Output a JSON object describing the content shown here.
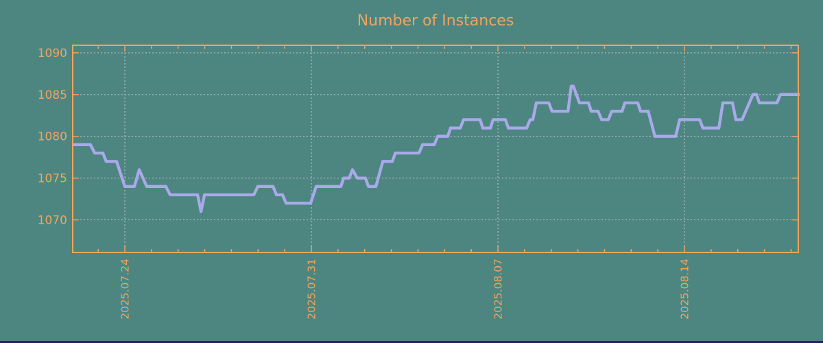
{
  "title": "Number of Instances",
  "colors": {
    "background": "#4d8681",
    "axis": "#f2a45c",
    "text": "#f2a45c",
    "line": "#a9a9ea",
    "grid": "#c9c9c9",
    "bottom_strip": "#26265e"
  },
  "chart_data": {
    "type": "line",
    "title": "Number of Instances",
    "xlabel": "",
    "ylabel": "",
    "grid": true,
    "legend": "none",
    "x_axis": {
      "unit": "days relative to 2025.07.24",
      "lim": [
        -1.956,
        25.271
      ],
      "major_ticks": [
        {
          "t": 0,
          "label": "2025.07.24"
        },
        {
          "t": 7,
          "label": "2025.07.31"
        },
        {
          "t": 14,
          "label": "2025.08.07"
        },
        {
          "t": 21,
          "label": "2025.08.14"
        }
      ],
      "minor_tick_interval": 1
    },
    "y_axis": {
      "lim": [
        1066.1,
        1090.9
      ],
      "ticks": [
        {
          "value": 1070,
          "label": "1070"
        },
        {
          "value": 1075,
          "label": "1075"
        },
        {
          "value": 1080,
          "label": "1080"
        },
        {
          "value": 1085,
          "label": "1085"
        },
        {
          "value": 1090,
          "label": "1090"
        }
      ]
    },
    "series": [
      {
        "name": "instances",
        "color": "#a9a9ea",
        "points": [
          [
            -1.96,
            1079
          ],
          [
            -1.29,
            1079
          ],
          [
            -1.13,
            1078
          ],
          [
            -0.82,
            1078
          ],
          [
            -0.7,
            1077
          ],
          [
            -0.31,
            1077
          ],
          [
            0.0,
            1074
          ],
          [
            0.36,
            1074
          ],
          [
            0.54,
            1076
          ],
          [
            0.82,
            1074
          ],
          [
            1.54,
            1074
          ],
          [
            1.7,
            1073
          ],
          [
            2.73,
            1073
          ],
          [
            2.86,
            1071
          ],
          [
            2.99,
            1073
          ],
          [
            4.84,
            1073
          ],
          [
            4.99,
            1074
          ],
          [
            5.56,
            1074
          ],
          [
            5.69,
            1073
          ],
          [
            5.92,
            1073
          ],
          [
            6.05,
            1072
          ],
          [
            6.97,
            1072
          ],
          [
            7.18,
            1074
          ],
          [
            8.11,
            1074
          ],
          [
            8.21,
            1075
          ],
          [
            8.42,
            1075
          ],
          [
            8.54,
            1076
          ],
          [
            8.72,
            1075
          ],
          [
            9.03,
            1075
          ],
          [
            9.14,
            1074
          ],
          [
            9.42,
            1074
          ],
          [
            9.68,
            1077
          ],
          [
            10.04,
            1077
          ],
          [
            10.15,
            1078
          ],
          [
            11.04,
            1078
          ],
          [
            11.17,
            1079
          ],
          [
            11.61,
            1079
          ],
          [
            11.74,
            1080
          ],
          [
            12.12,
            1080
          ],
          [
            12.22,
            1081
          ],
          [
            12.59,
            1081
          ],
          [
            12.71,
            1082
          ],
          [
            13.33,
            1082
          ],
          [
            13.43,
            1081
          ],
          [
            13.72,
            1081
          ],
          [
            13.82,
            1082
          ],
          [
            14.28,
            1082
          ],
          [
            14.39,
            1081
          ],
          [
            15.08,
            1081
          ],
          [
            15.21,
            1082
          ],
          [
            15.31,
            1082
          ],
          [
            15.44,
            1084
          ],
          [
            15.91,
            1084
          ],
          [
            16.03,
            1083
          ],
          [
            16.63,
            1083
          ],
          [
            16.75,
            1086
          ],
          [
            16.83,
            1086
          ],
          [
            17.06,
            1084
          ],
          [
            17.4,
            1084
          ],
          [
            17.5,
            1083
          ],
          [
            17.76,
            1083
          ],
          [
            17.89,
            1082
          ],
          [
            18.14,
            1082
          ],
          [
            18.27,
            1083
          ],
          [
            18.66,
            1083
          ],
          [
            18.76,
            1084
          ],
          [
            19.25,
            1084
          ],
          [
            19.35,
            1083
          ],
          [
            19.64,
            1083
          ],
          [
            19.89,
            1080
          ],
          [
            20.67,
            1080
          ],
          [
            20.82,
            1082
          ],
          [
            21.57,
            1082
          ],
          [
            21.69,
            1081
          ],
          [
            22.29,
            1081
          ],
          [
            22.44,
            1084
          ],
          [
            22.8,
            1084
          ],
          [
            22.93,
            1082
          ],
          [
            23.16,
            1082
          ],
          [
            23.57,
            1085
          ],
          [
            23.7,
            1085
          ],
          [
            23.81,
            1084
          ],
          [
            24.47,
            1084
          ],
          [
            24.6,
            1085
          ],
          [
            25.32,
            1085
          ]
        ]
      }
    ]
  }
}
